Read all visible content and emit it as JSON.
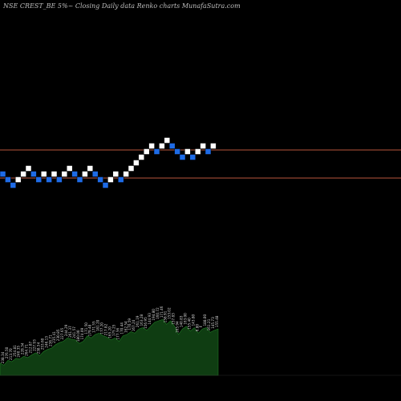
{
  "chart_data": {
    "type": "renko",
    "title": "NSE CREST_BE 5%~  Closing Daily data  Renko  charts MunafaSutra.com",
    "reference_lines": [
      {
        "level": "upper",
        "color": "#b9563c"
      },
      {
        "level": "lower",
        "color": "#b9563c"
      }
    ],
    "bricks": [
      {
        "step": 0,
        "level": 0,
        "color": "blue"
      },
      {
        "step": 1,
        "level": -1,
        "color": "blue"
      },
      {
        "step": 2,
        "level": -2,
        "color": "blue"
      },
      {
        "step": 3,
        "level": -1,
        "color": "white"
      },
      {
        "step": 4,
        "level": 0,
        "color": "white"
      },
      {
        "step": 5,
        "level": 1,
        "color": "white"
      },
      {
        "step": 6,
        "level": 0,
        "color": "blue"
      },
      {
        "step": 7,
        "level": -1,
        "color": "blue"
      },
      {
        "step": 8,
        "level": 0,
        "color": "white"
      },
      {
        "step": 9,
        "level": -1,
        "color": "blue"
      },
      {
        "step": 10,
        "level": 0,
        "color": "white"
      },
      {
        "step": 11,
        "level": -1,
        "color": "blue"
      },
      {
        "step": 12,
        "level": 0,
        "color": "white"
      },
      {
        "step": 13,
        "level": 1,
        "color": "white"
      },
      {
        "step": 14,
        "level": 0,
        "color": "blue"
      },
      {
        "step": 15,
        "level": -1,
        "color": "blue"
      },
      {
        "step": 16,
        "level": 0,
        "color": "white"
      },
      {
        "step": 17,
        "level": 1,
        "color": "white"
      },
      {
        "step": 18,
        "level": 0,
        "color": "blue"
      },
      {
        "step": 19,
        "level": -1,
        "color": "blue"
      },
      {
        "step": 20,
        "level": -2,
        "color": "blue"
      },
      {
        "step": 21,
        "level": -1,
        "color": "white"
      },
      {
        "step": 22,
        "level": 0,
        "color": "white"
      },
      {
        "step": 23,
        "level": -1,
        "color": "blue"
      },
      {
        "step": 24,
        "level": 0,
        "color": "white"
      },
      {
        "step": 25,
        "level": 1,
        "color": "white"
      },
      {
        "step": 26,
        "level": 2,
        "color": "white"
      },
      {
        "step": 27,
        "level": 3,
        "color": "white"
      },
      {
        "step": 28,
        "level": 4,
        "color": "white"
      },
      {
        "step": 29,
        "level": 5,
        "color": "white"
      },
      {
        "step": 30,
        "level": 4,
        "color": "blue"
      },
      {
        "step": 31,
        "level": 5,
        "color": "white"
      },
      {
        "step": 32,
        "level": 6,
        "color": "white"
      },
      {
        "step": 33,
        "level": 5,
        "color": "blue"
      },
      {
        "step": 34,
        "level": 4,
        "color": "blue"
      },
      {
        "step": 35,
        "level": 3,
        "color": "blue"
      },
      {
        "step": 36,
        "level": 4,
        "color": "white"
      },
      {
        "step": 37,
        "level": 3,
        "color": "blue"
      },
      {
        "step": 38,
        "level": 4,
        "color": "white"
      },
      {
        "step": 39,
        "level": 5,
        "color": "white"
      },
      {
        "step": 40,
        "level": 4,
        "color": "blue"
      },
      {
        "step": 41,
        "level": 5,
        "color": "white"
      }
    ],
    "volume": {
      "values": [
        18,
        15,
        22,
        20,
        25,
        24,
        28,
        26,
        30,
        33,
        29,
        35,
        38,
        40,
        45,
        48,
        50,
        55,
        53,
        52,
        47,
        50,
        58,
        55,
        60,
        62,
        58,
        56,
        52,
        55,
        50,
        58,
        60,
        64,
        62,
        68,
        70,
        66,
        72,
        78,
        80,
        82,
        75,
        80,
        72,
        60,
        68,
        72,
        65,
        70,
        62,
        68,
        70,
        63,
        66,
        68
      ],
      "labels": [
        "238.57",
        "238.34",
        "276.50",
        "213.70",
        "254.81",
        "240.35",
        "228.34",
        "264.71",
        "212.87",
        "227.93",
        "238.54",
        "253.60",
        "246.13",
        "236.71",
        "235.41",
        "230.85",
        "227.65",
        "244.29",
        "261.37",
        "241.57",
        "180.00",
        "174.09",
        "171.50",
        "179.48",
        "171.55",
        "181.20",
        "177.20",
        "217.82",
        "165.20",
        "175.25",
        "177.56",
        "170.44",
        "162.54",
        "170.59",
        "167.24",
        "261.19",
        "163.28",
        "156.95",
        "144.93",
        "194.80",
        "160.72",
        "171.46",
        "158.91",
        "153.02",
        "157.83",
        "165.94",
        "140.83",
        "163.00",
        "155.40",
        "143.80",
        "6.80",
        "F",
        "188.00",
        "161.21",
        "145.73",
        "155.48"
      ]
    }
  }
}
